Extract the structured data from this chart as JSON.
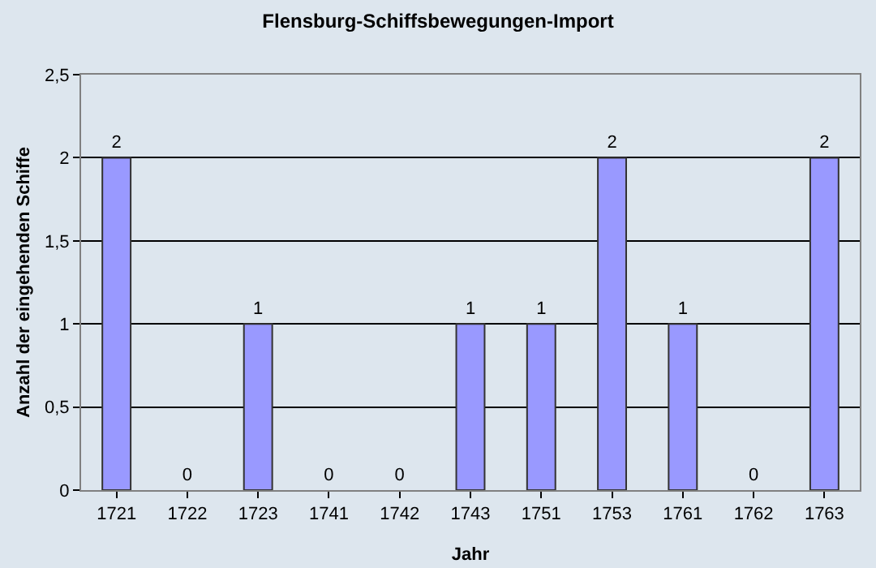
{
  "chart_data": {
    "type": "bar",
    "title": "Flensburg-Schiffsbewegungen-Import",
    "xlabel": "Jahr",
    "ylabel": "Anzahl der eingehenden Schiffe",
    "categories": [
      "1721",
      "1722",
      "1723",
      "1741",
      "1742",
      "1743",
      "1751",
      "1753",
      "1761",
      "1762",
      "1763"
    ],
    "values": [
      2,
      0,
      1,
      0,
      0,
      1,
      1,
      2,
      1,
      0,
      2
    ],
    "color": "#9999ff",
    "ylim": [
      0,
      2.5
    ],
    "yticks": [
      0,
      {
        "value": 0.5,
        "label": "0,5"
      },
      1,
      {
        "value": 1.5,
        "label": "1,5"
      },
      2,
      {
        "value": 2.5,
        "label": "2,5"
      }
    ],
    "grid": "y",
    "data_labels": true
  }
}
